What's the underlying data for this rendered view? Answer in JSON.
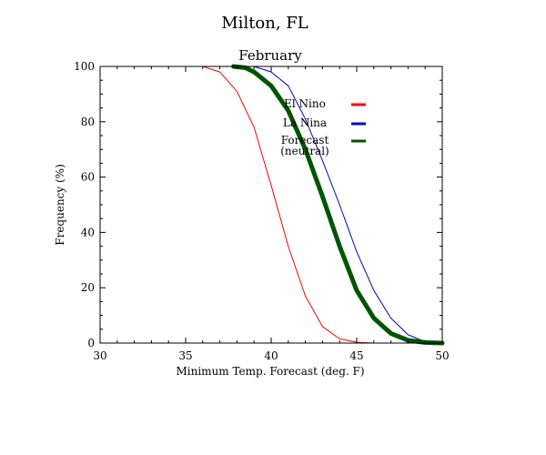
{
  "chart_data": {
    "type": "line",
    "title": "Milton, FL",
    "subtitle": "February",
    "xlabel": "Minimum Temp. Forecast (deg. F)",
    "ylabel": "Frequency (%)",
    "xlim": [
      30,
      50
    ],
    "ylim": [
      0,
      100
    ],
    "xticks": [
      30,
      35,
      40,
      45,
      50
    ],
    "yticks": [
      0,
      20,
      40,
      60,
      80,
      100
    ],
    "xtick_labels": [
      "30",
      "35",
      "40",
      "45",
      "50"
    ],
    "ytick_labels": [
      "0",
      "20",
      "40",
      "60",
      "80",
      "100"
    ],
    "grid": false,
    "legend_position": "upper-right",
    "series": [
      {
        "name": "El Nino",
        "color": "#ff0000",
        "line_weight": "thin",
        "points": [
          [
            35,
            100
          ],
          [
            36,
            100
          ],
          [
            37,
            98
          ],
          [
            38,
            91
          ],
          [
            39,
            78
          ],
          [
            40,
            57
          ],
          [
            41,
            35
          ],
          [
            42,
            17
          ],
          [
            43,
            6
          ],
          [
            44,
            1.5
          ],
          [
            45,
            0.3
          ],
          [
            46,
            0
          ],
          [
            50,
            0
          ]
        ]
      },
      {
        "name": "La Nina",
        "color": "#0000cc",
        "line_weight": "thin",
        "points": [
          [
            38,
            100
          ],
          [
            39,
            100
          ],
          [
            40,
            98
          ],
          [
            41,
            93
          ],
          [
            42,
            81
          ],
          [
            43,
            66
          ],
          [
            44,
            50
          ],
          [
            45,
            33
          ],
          [
            46,
            19
          ],
          [
            47,
            9
          ],
          [
            48,
            3
          ],
          [
            49,
            0.5
          ],
          [
            50,
            0
          ]
        ]
      },
      {
        "name": "Forecast\n(neutral)",
        "label_lines": [
          "Forecast",
          "(neutral)"
        ],
        "color": "#005500",
        "line_weight": "thick",
        "points": [
          [
            37.8,
            100
          ],
          [
            38.5,
            99.5
          ],
          [
            39,
            98
          ],
          [
            40,
            93
          ],
          [
            41,
            84
          ],
          [
            42,
            70
          ],
          [
            43,
            53
          ],
          [
            44,
            35
          ],
          [
            45,
            19
          ],
          [
            46,
            9
          ],
          [
            47,
            3.5
          ],
          [
            48,
            1
          ],
          [
            49,
            0.2
          ],
          [
            50,
            0
          ]
        ]
      }
    ]
  }
}
